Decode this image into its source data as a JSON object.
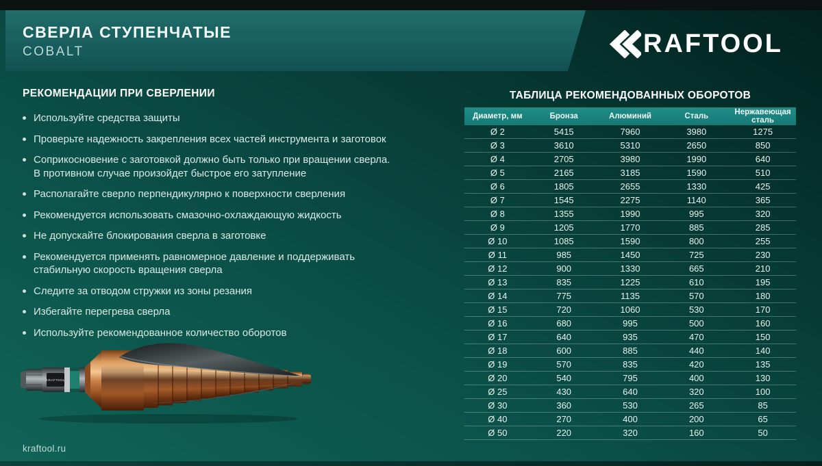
{
  "header": {
    "title": "СВЕРЛА СТУПЕНЧАТЫЕ",
    "subtitle": "COBALT",
    "brand": "KRAFTOOL"
  },
  "recommendations": {
    "title": "РЕКОМЕНДАЦИИ ПРИ СВЕРЛЕНИИ",
    "items": [
      "Используйте средства защиты",
      "Проверьте надежность закрепления всех частей инструмента и заготовок",
      "Соприкосновение с заготовкой должно быть только при вращении сверла.\nВ противном случае произойдет быстрое его затупление",
      "Располагайте сверло перпендикулярно к поверхности сверления",
      "Рекомендуется использовать смазочно-охлаждающую жидкость",
      "Не допускайте блокирования сверла в заготовке",
      "Рекомендуется применять равномерное давление и поддерживать\nстабильную скорость вращения сверла",
      "Следите за отводом стружки из зоны резания",
      "Избегайте перегрева сверла",
      "Используйте рекомендованное количество оборотов"
    ]
  },
  "speed_table": {
    "title": "ТАБЛИЦА РЕКОМЕНДОВАННЫХ ОБОРОТОВ",
    "columns": [
      "Диаметр, мм",
      "Бронза",
      "Алюминий",
      "Сталь",
      "Нержавеющая сталь"
    ],
    "rows": [
      [
        "Ø 2",
        "5415",
        "7960",
        "3980",
        "1275"
      ],
      [
        "Ø 3",
        "3610",
        "5310",
        "2650",
        "850"
      ],
      [
        "Ø 4",
        "2705",
        "3980",
        "1990",
        "640"
      ],
      [
        "Ø 5",
        "2165",
        "3185",
        "1590",
        "510"
      ],
      [
        "Ø 6",
        "1805",
        "2655",
        "1330",
        "425"
      ],
      [
        "Ø 7",
        "1545",
        "2275",
        "1140",
        "365"
      ],
      [
        "Ø 8",
        "1355",
        "1990",
        "995",
        "320"
      ],
      [
        "Ø 9",
        "1205",
        "1770",
        "885",
        "285"
      ],
      [
        "Ø 10",
        "1085",
        "1590",
        "800",
        "255"
      ],
      [
        "Ø 11",
        "985",
        "1450",
        "725",
        "230"
      ],
      [
        "Ø 12",
        "900",
        "1330",
        "665",
        "210"
      ],
      [
        "Ø 13",
        "835",
        "1225",
        "610",
        "195"
      ],
      [
        "Ø 14",
        "775",
        "1135",
        "570",
        "180"
      ],
      [
        "Ø 15",
        "720",
        "1060",
        "530",
        "170"
      ],
      [
        "Ø 16",
        "680",
        "995",
        "500",
        "160"
      ],
      [
        "Ø 17",
        "640",
        "935",
        "470",
        "150"
      ],
      [
        "Ø 18",
        "600",
        "885",
        "440",
        "140"
      ],
      [
        "Ø 19",
        "570",
        "835",
        "420",
        "135"
      ],
      [
        "Ø 20",
        "540",
        "795",
        "400",
        "130"
      ],
      [
        "Ø 25",
        "430",
        "640",
        "320",
        "100"
      ],
      [
        "Ø 30",
        "360",
        "530",
        "265",
        "85"
      ],
      [
        "Ø 40",
        "270",
        "400",
        "200",
        "65"
      ],
      [
        "Ø 50",
        "220",
        "320",
        "160",
        "50"
      ]
    ]
  },
  "drill": {
    "shank_label": "KRAFTOOL"
  },
  "footer": {
    "website": "kraftool.ru"
  },
  "colors": {
    "background_light": "#106457",
    "background_dark": "#03201e",
    "band_teal": "#1a5f5f",
    "table_header_teal": "#1a827d",
    "copper": "#c98048",
    "text_light": "#d9eae6"
  }
}
